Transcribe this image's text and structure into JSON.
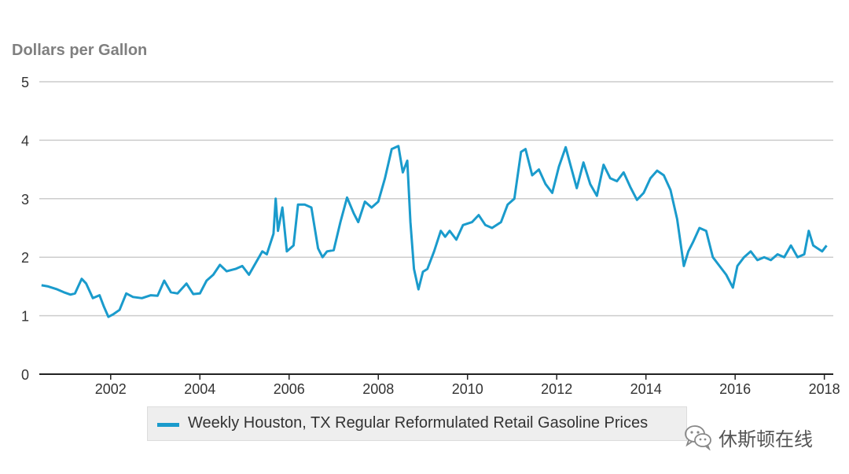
{
  "chart_data": {
    "type": "line",
    "ylabel": "Dollars per Gallon",
    "ylim": [
      0,
      5
    ],
    "yticks": [
      "0",
      "1",
      "2",
      "3",
      "4",
      "5"
    ],
    "xlim": [
      2000.4,
      2018.2
    ],
    "xticks": [
      "2002",
      "2004",
      "2006",
      "2008",
      "2010",
      "2012",
      "2014",
      "2016",
      "2018"
    ],
    "grid": "horizontal",
    "legend_position": "bottom",
    "colors": {
      "series": "#1a9bcc",
      "grid": "#cccccc",
      "axis": "#222222"
    },
    "series": [
      {
        "name": "Weekly Houston, TX Regular Reformulated Retail Gasoline Prices",
        "x": [
          2000.45,
          2000.6,
          2000.8,
          2000.95,
          2001.1,
          2001.2,
          2001.35,
          2001.45,
          2001.6,
          2001.75,
          2001.85,
          2001.95,
          2002.05,
          2002.2,
          2002.35,
          2002.5,
          2002.7,
          2002.9,
          2003.05,
          2003.2,
          2003.35,
          2003.5,
          2003.7,
          2003.85,
          2004.0,
          2004.15,
          2004.3,
          2004.45,
          2004.6,
          2004.8,
          2004.95,
          2005.1,
          2005.25,
          2005.4,
          2005.5,
          2005.65,
          2005.7,
          2005.75,
          2005.85,
          2005.95,
          2006.1,
          2006.2,
          2006.35,
          2006.5,
          2006.65,
          2006.75,
          2006.85,
          2007.0,
          2007.15,
          2007.3,
          2007.45,
          2007.55,
          2007.7,
          2007.85,
          2008.0,
          2008.15,
          2008.3,
          2008.45,
          2008.55,
          2008.65,
          2008.72,
          2008.8,
          2008.9,
          2009.0,
          2009.1,
          2009.25,
          2009.4,
          2009.5,
          2009.6,
          2009.75,
          2009.9,
          2010.1,
          2010.25,
          2010.4,
          2010.55,
          2010.75,
          2010.9,
          2011.05,
          2011.2,
          2011.3,
          2011.45,
          2011.6,
          2011.75,
          2011.9,
          2012.05,
          2012.2,
          2012.3,
          2012.45,
          2012.6,
          2012.75,
          2012.9,
          2013.05,
          2013.2,
          2013.35,
          2013.5,
          2013.65,
          2013.8,
          2013.95,
          2014.1,
          2014.25,
          2014.4,
          2014.55,
          2014.7,
          2014.85,
          2014.95,
          2015.05,
          2015.2,
          2015.35,
          2015.5,
          2015.65,
          2015.8,
          2015.95,
          2016.05,
          2016.2,
          2016.35,
          2016.5,
          2016.65,
          2016.8,
          2016.95,
          2017.1,
          2017.25,
          2017.4,
          2017.55,
          2017.65,
          2017.75,
          2017.85,
          2017.95,
          2018.05
        ],
        "values": [
          1.52,
          1.5,
          1.45,
          1.4,
          1.36,
          1.38,
          1.63,
          1.55,
          1.3,
          1.35,
          1.15,
          0.98,
          1.02,
          1.1,
          1.38,
          1.32,
          1.3,
          1.35,
          1.34,
          1.6,
          1.4,
          1.38,
          1.55,
          1.37,
          1.38,
          1.6,
          1.7,
          1.87,
          1.76,
          1.8,
          1.85,
          1.7,
          1.9,
          2.1,
          2.05,
          2.4,
          3.0,
          2.45,
          2.85,
          2.1,
          2.2,
          2.9,
          2.9,
          2.85,
          2.15,
          2.0,
          2.1,
          2.12,
          2.6,
          3.02,
          2.75,
          2.6,
          2.95,
          2.85,
          2.95,
          3.35,
          3.85,
          3.9,
          3.45,
          3.65,
          2.6,
          1.8,
          1.45,
          1.75,
          1.8,
          2.1,
          2.45,
          2.35,
          2.45,
          2.3,
          2.55,
          2.6,
          2.72,
          2.55,
          2.5,
          2.6,
          2.9,
          3.0,
          3.8,
          3.85,
          3.4,
          3.5,
          3.25,
          3.1,
          3.55,
          3.88,
          3.6,
          3.18,
          3.62,
          3.25,
          3.05,
          3.58,
          3.35,
          3.3,
          3.45,
          3.2,
          2.98,
          3.1,
          3.35,
          3.48,
          3.4,
          3.15,
          2.65,
          1.85,
          2.1,
          2.25,
          2.5,
          2.45,
          2.0,
          1.85,
          1.7,
          1.48,
          1.85,
          2.0,
          2.1,
          1.95,
          2.0,
          1.95,
          2.05,
          2.0,
          2.2,
          2.0,
          2.05,
          2.45,
          2.2,
          2.15,
          2.1,
          2.2
        ]
      }
    ]
  },
  "watermark": {
    "text": "休斯顿在线",
    "icon": "wechat-icon"
  }
}
